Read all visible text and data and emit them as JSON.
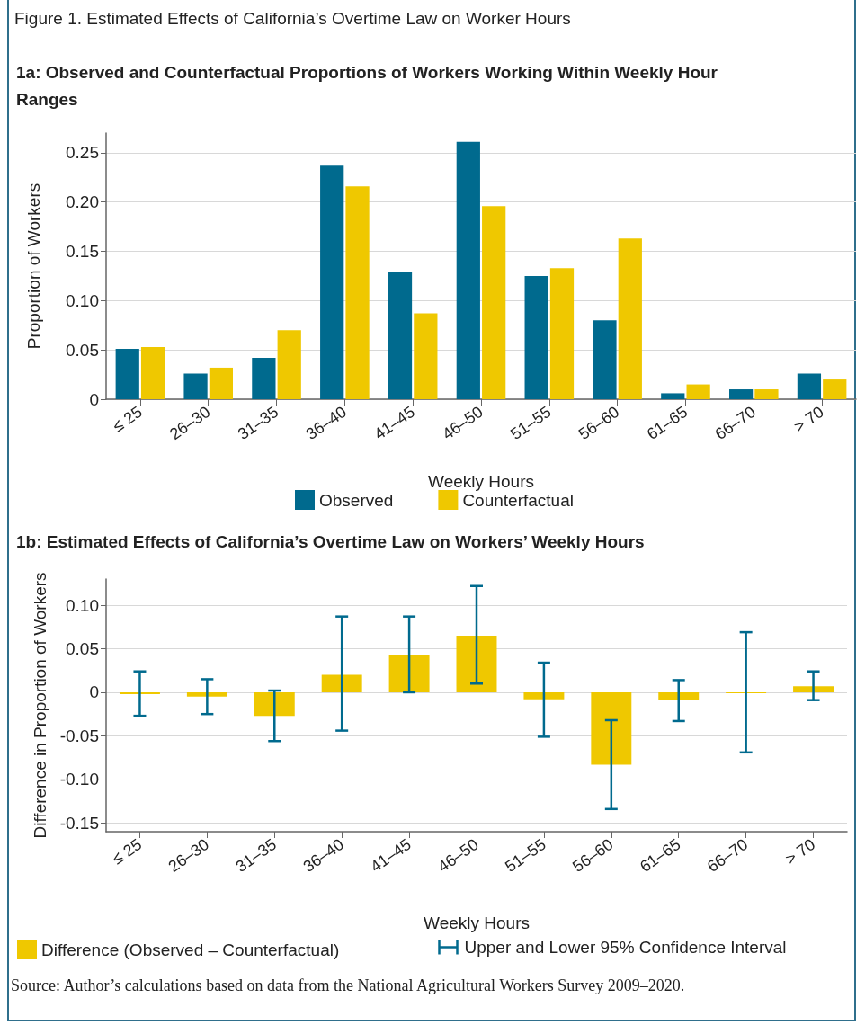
{
  "chart_data": [
    {
      "type": "bar",
      "title": "Figure 1. Estimated Effects of California’s Overtime Law on Worker Hours",
      "subtitle": "1a: Observed and Counterfactual Proportions of Workers Working Within Weekly Hour Ranges",
      "xlabel": "Weekly Hours",
      "ylabel": "Proportion of Workers",
      "categories": [
        "≤ 25",
        "26–30",
        "31–35",
        "36–40",
        "41–45",
        "46–50",
        "51–55",
        "56–60",
        "61–65",
        "66–70",
        "> 70"
      ],
      "series": [
        {
          "name": "Observed",
          "color": "#006a8e",
          "values": [
            0.051,
            0.026,
            0.042,
            0.237,
            0.129,
            0.261,
            0.125,
            0.08,
            0.006,
            0.01,
            0.026
          ]
        },
        {
          "name": "Counterfactual",
          "color": "#efc800",
          "values": [
            0.053,
            0.032,
            0.07,
            0.216,
            0.087,
            0.196,
            0.133,
            0.163,
            0.015,
            0.01,
            0.02
          ]
        }
      ],
      "ylim": [
        0,
        0.27
      ],
      "yticks": [
        0,
        {
          "value": 0.05,
          "label": "0.05"
        },
        {
          "value": 0.1,
          "label": "0.10"
        },
        {
          "value": 0.15,
          "label": "0.15"
        },
        {
          "value": 0.2,
          "label": "0.20"
        },
        {
          "value": 0.25,
          "label": "0.25"
        }
      ],
      "grid": "y",
      "legend": "bottom"
    },
    {
      "type": "bar",
      "title": "1b: Estimated Effects of California’s Overtime Law on Workers’ Weekly Hours",
      "xlabel": "Weekly Hours",
      "ylabel": "Difference in Proportion of Workers",
      "categories": [
        "≤ 25",
        "26–30",
        "31–35",
        "36–40",
        "41–45",
        "46–50",
        "51–55",
        "56–60",
        "61–65",
        "66–70",
        "> 70"
      ],
      "series": [
        {
          "name": "Difference (Observed – Counterfactual)",
          "color": "#efc800",
          "values": [
            -0.002,
            -0.005,
            -0.027,
            0.02,
            0.043,
            0.065,
            -0.008,
            -0.083,
            -0.009,
            -0.001,
            0.007
          ],
          "errors": [
            [
              -0.027,
              0.024
            ],
            [
              -0.025,
              0.015
            ],
            [
              -0.056,
              0.002
            ],
            [
              -0.044,
              0.087
            ],
            [
              0.0,
              0.087
            ],
            [
              0.01,
              0.122
            ],
            [
              -0.051,
              0.034
            ],
            [
              -0.134,
              -0.032
            ],
            [
              -0.033,
              0.014
            ],
            [
              -0.069,
              0.069
            ],
            [
              -0.009,
              0.024
            ]
          ]
        }
      ],
      "ylim": [
        -0.16,
        0.13
      ],
      "yticks": [
        {
          "value": -0.15,
          "label": "-0.15"
        },
        {
          "value": -0.1,
          "label": "-0.10"
        },
        {
          "value": -0.05,
          "label": "-0.05"
        },
        0,
        {
          "value": 0.05,
          "label": "0.05"
        },
        {
          "value": 0.1,
          "label": "0.10"
        }
      ],
      "grid": "y",
      "legend": "bottom left",
      "annotations": [
        "Upper and Lower 95% Confidence Interval",
        "Source: Author’s calculations based on data from the National Agricultural Workers Survey 2009–2020."
      ]
    }
  ]
}
